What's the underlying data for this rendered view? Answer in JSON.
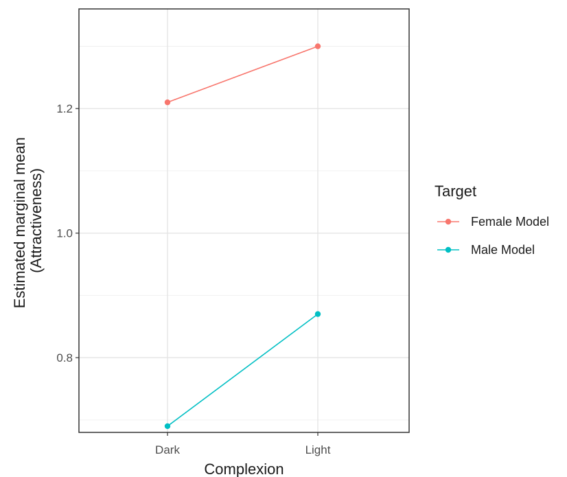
{
  "chart_data": {
    "type": "line",
    "title": "",
    "xlabel": "Complexion",
    "ylabel": [
      "Estimated marginal mean",
      "(Attractiveness)"
    ],
    "categories": [
      "Dark",
      "Light"
    ],
    "ylim": [
      0.68,
      1.36
    ],
    "y_ticks": [
      0.8,
      1.0,
      1.2
    ],
    "y_tick_labels": [
      "0.8",
      "1.0",
      "1.2"
    ],
    "y_minor_ticks": [
      0.7,
      0.9,
      1.1,
      1.3
    ],
    "grid": true,
    "legend_title": "Target",
    "legend_position": "right",
    "series": [
      {
        "name": "Female Model",
        "values": [
          1.21,
          1.3
        ],
        "color": "#F8766D"
      },
      {
        "name": "Male Model",
        "values": [
          0.69,
          0.87
        ],
        "color": "#00BFC4"
      }
    ]
  }
}
